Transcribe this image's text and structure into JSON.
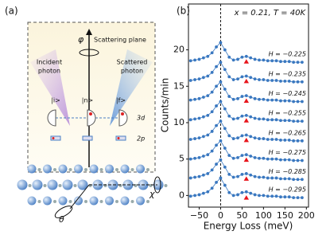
{
  "diagram": {
    "label": "(a)",
    "axis": "φ",
    "plane": "Scattering plane",
    "incident": [
      "Incident",
      "photon"
    ],
    "scattered": [
      "Scattered",
      "photon"
    ],
    "states": [
      "|i>",
      "|n>",
      "|f>"
    ],
    "levels": [
      "3d",
      "2p"
    ],
    "chi": "χ",
    "theta": "θ"
  },
  "chart_data": {
    "type": "line",
    "label": "(b)",
    "annotation": "x = 0.21, T = 40K",
    "x_label": "Energy Loss (meV)",
    "y_label": "Counts/min",
    "xlim": [
      -75,
      205
    ],
    "ylim": [
      -1.6,
      26.3
    ],
    "xticks": [
      {
        "value": -50,
        "label": "−50"
      },
      0,
      50,
      100,
      150,
      200
    ],
    "yticks": [
      0,
      5,
      10,
      15,
      20
    ],
    "vline": 0,
    "color": "#3a78c0",
    "marker_color": "#e8141b",
    "x": [
      -70,
      -60,
      -50,
      -40,
      -30,
      -20,
      -10,
      0,
      10,
      20,
      30,
      40,
      50,
      60,
      70,
      80,
      90,
      100,
      110,
      120,
      130,
      140,
      150,
      160,
      170,
      180,
      190
    ],
    "series": [
      {
        "name": "H = −0.225",
        "marker": [
          60,
          18.4
        ],
        "values": [
          18.5,
          18.6,
          18.7,
          18.9,
          19.1,
          19.6,
          20.4,
          21.0,
          20.0,
          19.0,
          18.6,
          18.7,
          19.0,
          19.1,
          18.9,
          18.7,
          18.6,
          18.6,
          18.5,
          18.5,
          18.5,
          18.4,
          18.4,
          18.4,
          18.3,
          18.3,
          18.3
        ]
      },
      {
        "name": "H = −0.235",
        "marker": [
          60,
          15.7
        ],
        "values": [
          15.8,
          15.9,
          16.0,
          16.2,
          16.4,
          16.9,
          17.7,
          18.3,
          17.3,
          16.3,
          15.9,
          16.0,
          16.3,
          16.4,
          16.2,
          16.0,
          15.9,
          15.9,
          15.8,
          15.8,
          15.8,
          15.7,
          15.7,
          15.7,
          15.6,
          15.6,
          15.6
        ]
      },
      {
        "name": "H = −0.245",
        "marker": [
          60,
          13.0
        ],
        "values": [
          13.1,
          13.2,
          13.3,
          13.5,
          13.7,
          14.2,
          15.0,
          15.6,
          14.6,
          13.6,
          13.2,
          13.3,
          13.6,
          13.7,
          13.5,
          13.3,
          13.2,
          13.2,
          13.1,
          13.1,
          13.1,
          13.0,
          13.0,
          13.0,
          12.9,
          12.9,
          12.9
        ]
      },
      {
        "name": "H = −0.255",
        "marker": [
          60,
          10.3
        ],
        "values": [
          10.4,
          10.5,
          10.6,
          10.8,
          11.0,
          11.5,
          12.3,
          12.9,
          11.9,
          10.9,
          10.5,
          10.6,
          10.9,
          11.0,
          10.8,
          10.6,
          10.5,
          10.5,
          10.4,
          10.4,
          10.4,
          10.3,
          10.3,
          10.3,
          10.2,
          10.2,
          10.2
        ]
      },
      {
        "name": "H = −0.265",
        "marker": [
          60,
          7.6
        ],
        "values": [
          7.7,
          7.8,
          7.9,
          8.1,
          8.3,
          8.8,
          9.6,
          10.2,
          9.2,
          8.2,
          7.8,
          7.9,
          8.2,
          8.3,
          8.1,
          7.9,
          7.8,
          7.8,
          7.7,
          7.7,
          7.7,
          7.6,
          7.6,
          7.6,
          7.5,
          7.5,
          7.5
        ]
      },
      {
        "name": "H = −0.275",
        "marker": [
          60,
          4.9
        ],
        "values": [
          5.0,
          5.1,
          5.2,
          5.4,
          5.6,
          6.1,
          6.9,
          7.5,
          6.5,
          5.5,
          5.1,
          5.2,
          5.5,
          5.6,
          5.4,
          5.2,
          5.1,
          5.1,
          5.0,
          5.0,
          5.0,
          4.9,
          4.9,
          4.9,
          4.8,
          4.8,
          4.8
        ]
      },
      {
        "name": "H = −0.285",
        "marker": [
          60,
          2.3
        ],
        "values": [
          2.4,
          2.5,
          2.6,
          2.8,
          3.0,
          3.5,
          4.3,
          4.9,
          3.9,
          2.9,
          2.5,
          2.6,
          2.9,
          3.0,
          2.8,
          2.6,
          2.5,
          2.5,
          2.4,
          2.4,
          2.4,
          2.3,
          2.3,
          2.3,
          2.2,
          2.2,
          2.2
        ]
      },
      {
        "name": "H = −0.295",
        "marker": [
          60,
          -0.3
        ],
        "values": [
          -0.1,
          0.0,
          0.1,
          0.3,
          0.5,
          1.0,
          1.8,
          2.4,
          1.4,
          0.4,
          0.0,
          0.1,
          0.4,
          0.5,
          0.3,
          0.1,
          0.0,
          0.0,
          -0.1,
          -0.1,
          -0.1,
          -0.2,
          -0.2,
          -0.2,
          -0.3,
          -0.3,
          -0.3
        ]
      }
    ]
  }
}
